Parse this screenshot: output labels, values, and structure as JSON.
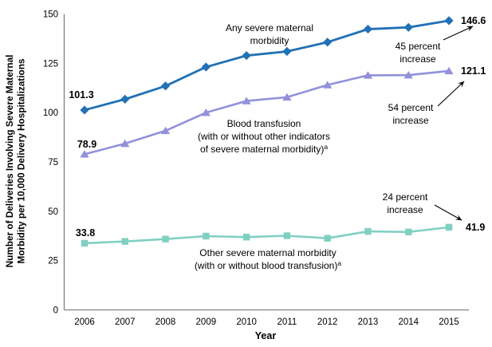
{
  "chart_data": {
    "type": "line",
    "xlabel": "Year",
    "ylabel_lines": [
      "Number of Deliveries Involving Severe Maternal",
      "Morbidity per 10,000 Delivery Hospitalizations"
    ],
    "ylim": [
      0,
      150
    ],
    "yticks": [
      0,
      25,
      50,
      75,
      100,
      125,
      150
    ],
    "categories": [
      "2006",
      "2007",
      "2008",
      "2009",
      "2010",
      "2011",
      "2012",
      "2013",
      "2014",
      "2015"
    ],
    "grid": "off",
    "legend_position": "inline-labels",
    "axis_color": "#808080",
    "text_color": "#000000",
    "annotation_arrow_color": "#000000",
    "series": [
      {
        "name": "any-severe-maternal-morbidity",
        "label_lines": [
          "Any severe  maternal",
          "morbidity"
        ],
        "label_sup": "",
        "color": "#2171B5",
        "marker": "diamond",
        "values": [
          101.3,
          106.8,
          113.5,
          123.1,
          128.9,
          131.0,
          135.7,
          142.3,
          143.2,
          146.6
        ],
        "first_value_label": "101.3",
        "last_value_label": "146.6",
        "increase_note_lines": [
          "45 percent",
          "increase"
        ]
      },
      {
        "name": "blood-transfusion",
        "label_lines": [
          "Blood transfusion",
          "(with or without other indicators",
          "of severe maternal morbidity)"
        ],
        "label_sup": "a",
        "color": "#9191DB",
        "marker": "triangle",
        "values": [
          78.9,
          84.3,
          90.8,
          100.0,
          105.9,
          107.8,
          114.0,
          118.9,
          119.0,
          121.1
        ],
        "first_value_label": "78.9",
        "last_value_label": "121.1",
        "increase_note_lines": [
          "54 percent",
          "increase"
        ]
      },
      {
        "name": "other-severe-maternal-morbidity",
        "label_lines": [
          "Other severe  maternal morbidity",
          "(with or without blood transfusion)"
        ],
        "label_sup": "a",
        "color": "#80D0C2",
        "marker": "square",
        "values": [
          33.8,
          34.7,
          35.9,
          37.4,
          36.9,
          37.6,
          36.3,
          39.8,
          39.5,
          41.9
        ],
        "first_value_label": "33.8",
        "last_value_label": "41.9",
        "increase_note_lines": [
          "24 percent",
          "increase"
        ]
      }
    ]
  }
}
